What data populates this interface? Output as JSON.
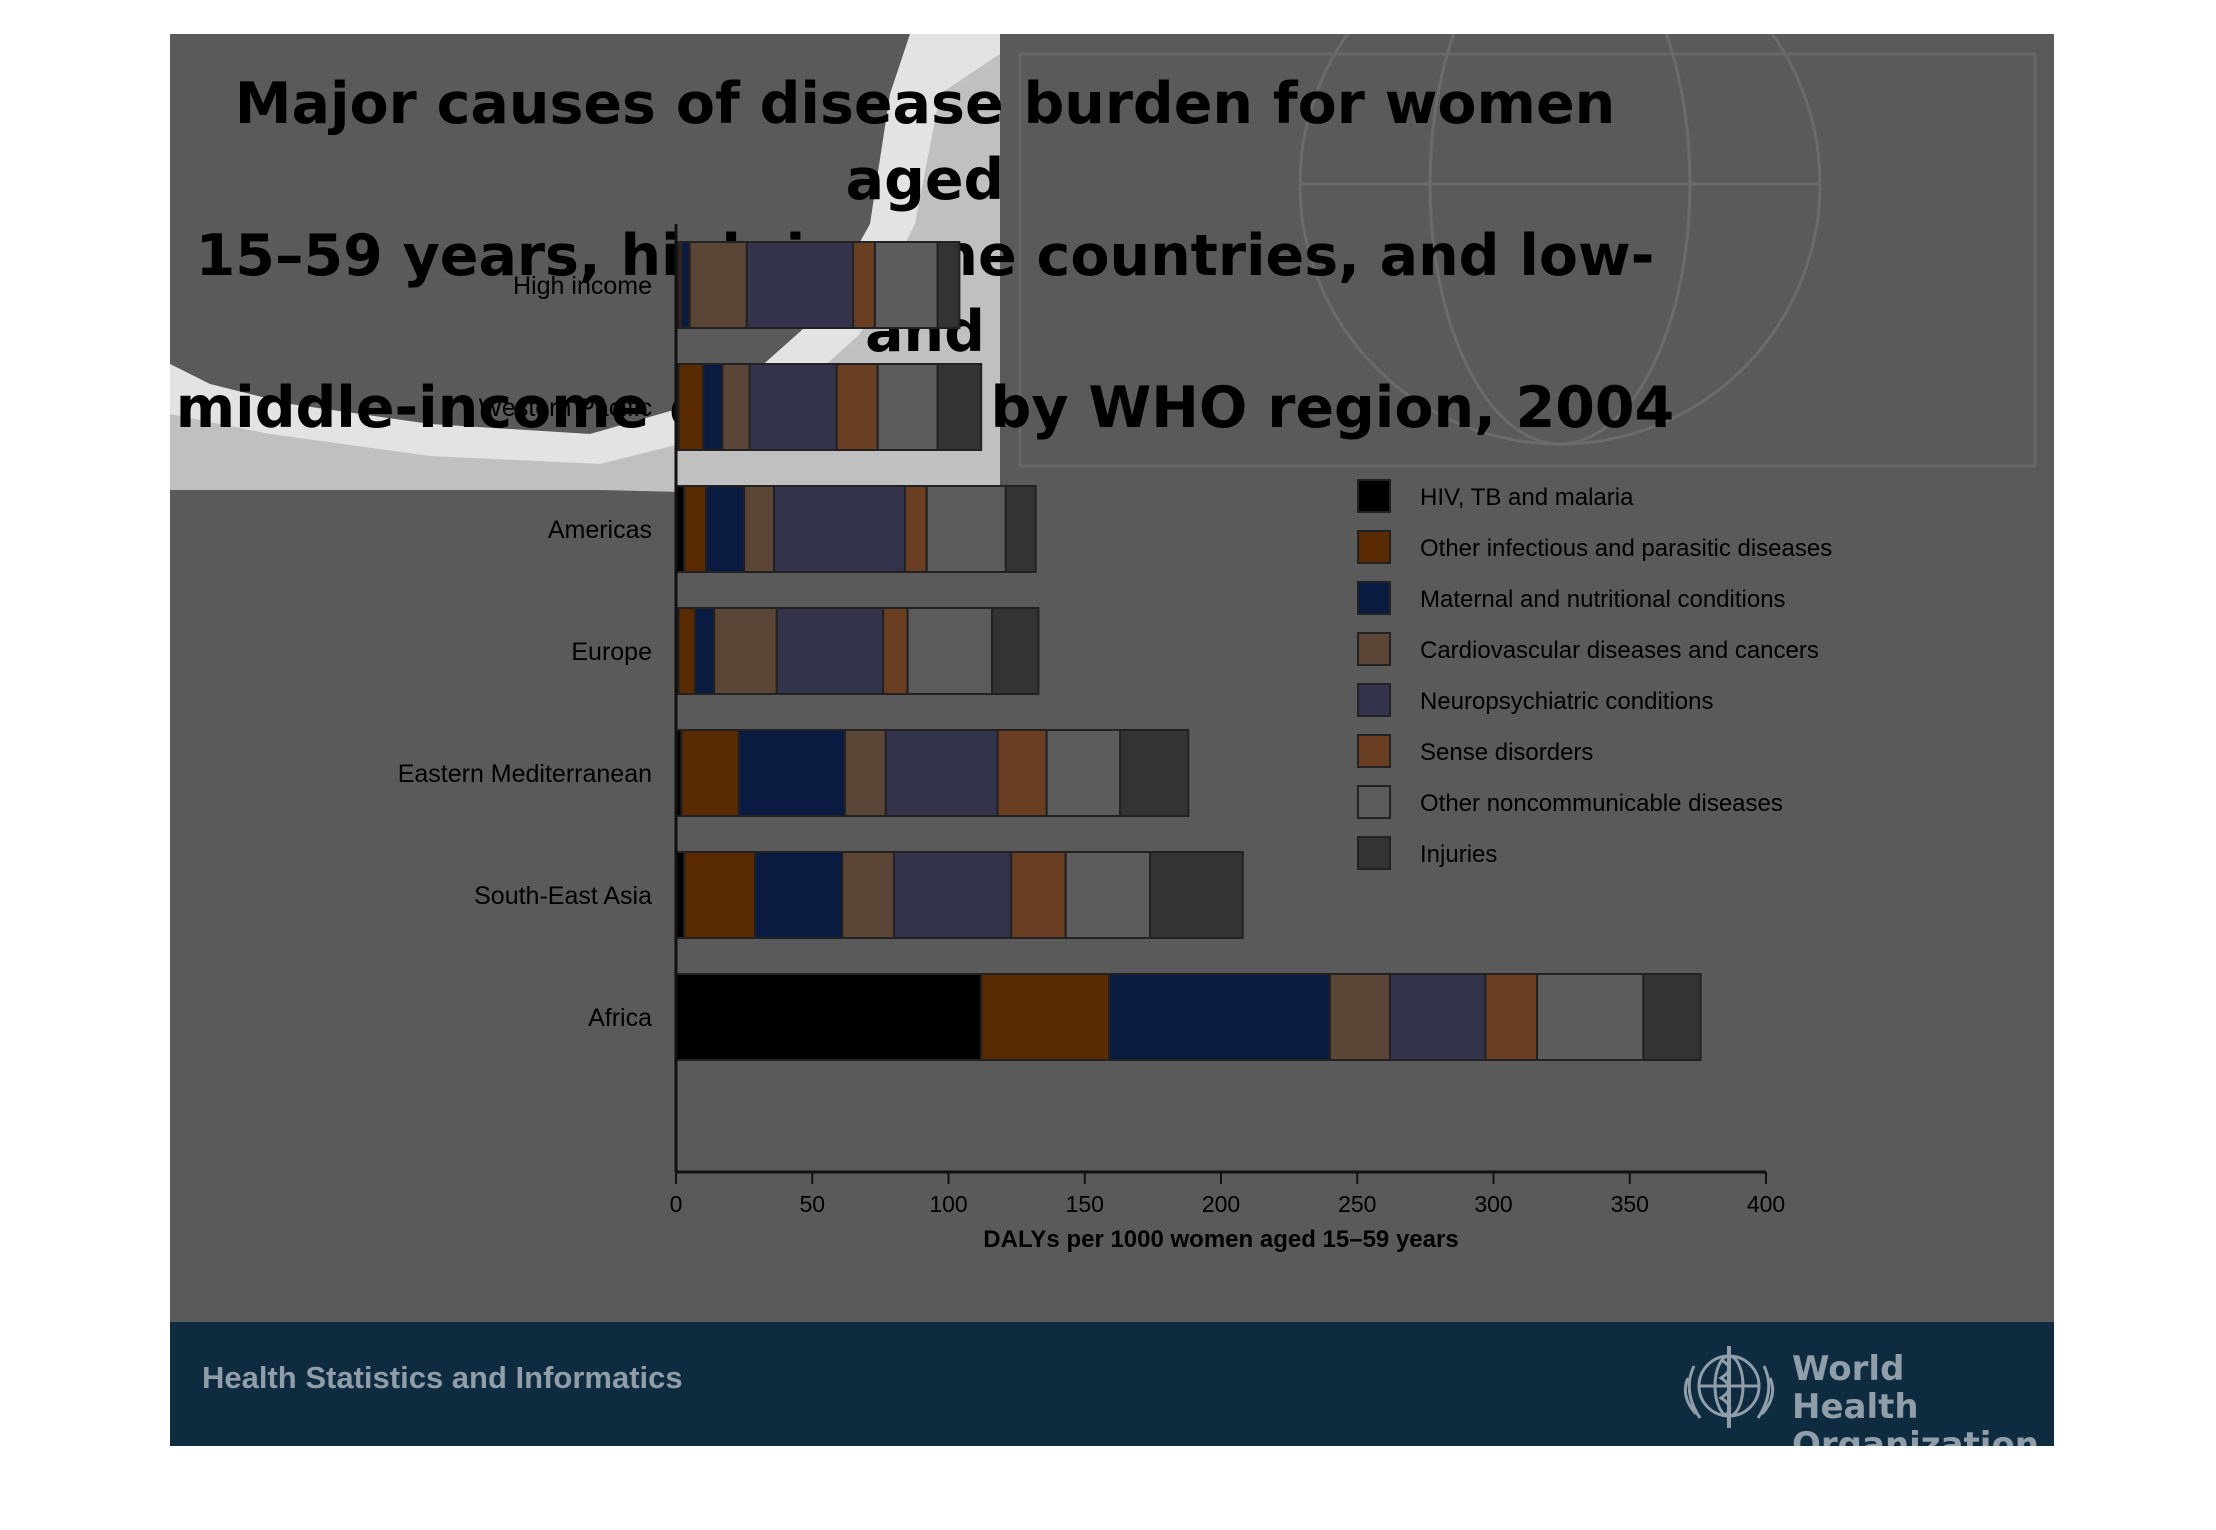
{
  "slide": {
    "title_lines": [
      "Major causes of disease burden for women aged",
      "15–59 years, high-income countries, and low- and",
      "middle-income countries by WHO region, 2004"
    ],
    "footer": "Health Statistics and Informatics",
    "org_name_lines": [
      "World Health",
      "Organization"
    ]
  },
  "colors": {
    "slide_bg": "#5a5a5a",
    "footer_bg": "#0e2b40",
    "footer_text": "#8f9ea8",
    "light_overlay": "#ffffff"
  },
  "chart_data": {
    "type": "bar",
    "orientation": "horizontal",
    "stacked": true,
    "categories": [
      "High income",
      "Western Pacific",
      "Americas",
      "Europe",
      "Eastern Mediterranean",
      "South-East Asia",
      "Africa"
    ],
    "xlabel": "DALYs per 1000 women aged 15–59 years",
    "xlim": [
      0,
      400
    ],
    "xticks": [
      "0",
      "50",
      "100",
      "150",
      "200",
      "250",
      "300",
      "350",
      "400"
    ],
    "legend_position": "right",
    "series": [
      {
        "name": "HIV, TB and malaria",
        "color": "#000000",
        "values": [
          1,
          1,
          3,
          1,
          2,
          3,
          112
        ]
      },
      {
        "name": "Other infectious and parasitic diseases",
        "color": "#5a2a00",
        "values": [
          1,
          9,
          8,
          6,
          21,
          26,
          47
        ]
      },
      {
        "name": "Maternal and nutritional conditions",
        "color": "#0a1a40",
        "values": [
          3,
          7,
          14,
          7,
          39,
          32,
          81
        ]
      },
      {
        "name": "Cardiovascular diseases and cancers",
        "color": "#5a4536",
        "values": [
          21,
          10,
          11,
          23,
          15,
          19,
          22
        ]
      },
      {
        "name": "Neuropsychiatric conditions",
        "color": "#34334c",
        "values": [
          39,
          32,
          48,
          39,
          41,
          43,
          35
        ]
      },
      {
        "name": "Sense disorders",
        "color": "#6a3e22",
        "values": [
          8,
          15,
          8,
          9,
          18,
          20,
          19
        ]
      },
      {
        "name": "Other noncommunicable diseases",
        "color": "#5c5c5c",
        "values": [
          23,
          22,
          29,
          31,
          27,
          31,
          39
        ]
      },
      {
        "name": "Injuries",
        "color": "#333333",
        "values": [
          8,
          16,
          11,
          17,
          25,
          34,
          21
        ]
      }
    ]
  }
}
